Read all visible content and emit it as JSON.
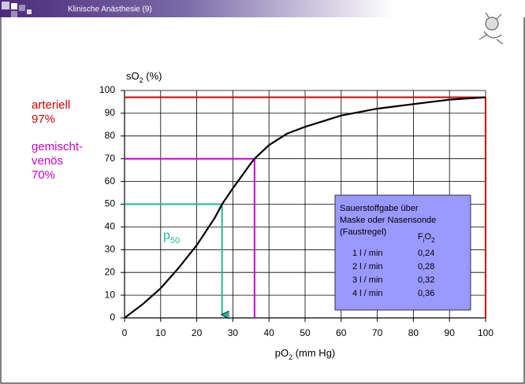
{
  "header": {
    "title": "Klinische Anästhesie (9)"
  },
  "chart_data": {
    "type": "line",
    "ylabel": [
      "sO",
      "2",
      " (%)"
    ],
    "xlabel": [
      "pO",
      "2",
      " (mm Hg)"
    ],
    "x": [
      0,
      5,
      10,
      15,
      20,
      25,
      27,
      30,
      35,
      36,
      40,
      45,
      50,
      60,
      70,
      80,
      90,
      100
    ],
    "values": [
      0,
      6,
      13,
      22,
      32,
      44,
      50,
      57,
      68,
      70,
      76,
      81,
      84,
      89,
      92,
      94,
      96,
      97
    ],
    "color": "#000000",
    "xlim": [
      0,
      100
    ],
    "ylim": [
      0,
      100
    ],
    "xticks": [
      0,
      10,
      20,
      30,
      40,
      50,
      60,
      70,
      80,
      90,
      100
    ],
    "yticks": [
      0,
      10,
      20,
      30,
      40,
      50,
      60,
      70,
      80,
      90,
      100
    ],
    "grid": true,
    "reference_lines": [
      {
        "label": [
          "arteriell",
          "97%"
        ],
        "color": "#cc0000",
        "x": 100,
        "y": 97,
        "arrow": false
      },
      {
        "label": [
          "gemischt-",
          "venös",
          "70%"
        ],
        "color": "#cc00cc",
        "x": 36,
        "y": 70,
        "arrow": false
      },
      {
        "label": [
          "p",
          "50"
        ],
        "color": "#1fb89a",
        "x": 27,
        "y": 50,
        "arrow": true
      }
    ],
    "info_box": {
      "title": [
        "Sauerstoffgabe über",
        "Maske oder Nasensonde",
        "(Faustregel)"
      ],
      "column_header": [
        "F",
        "i",
        "O",
        "2"
      ],
      "rows": [
        [
          "1 l / min",
          "0,24"
        ],
        [
          "2 l / min",
          "0,28"
        ],
        [
          "3 l / min",
          "0,32"
        ],
        [
          "4 l / min",
          "0,36"
        ]
      ],
      "color": "#9999ff"
    }
  }
}
